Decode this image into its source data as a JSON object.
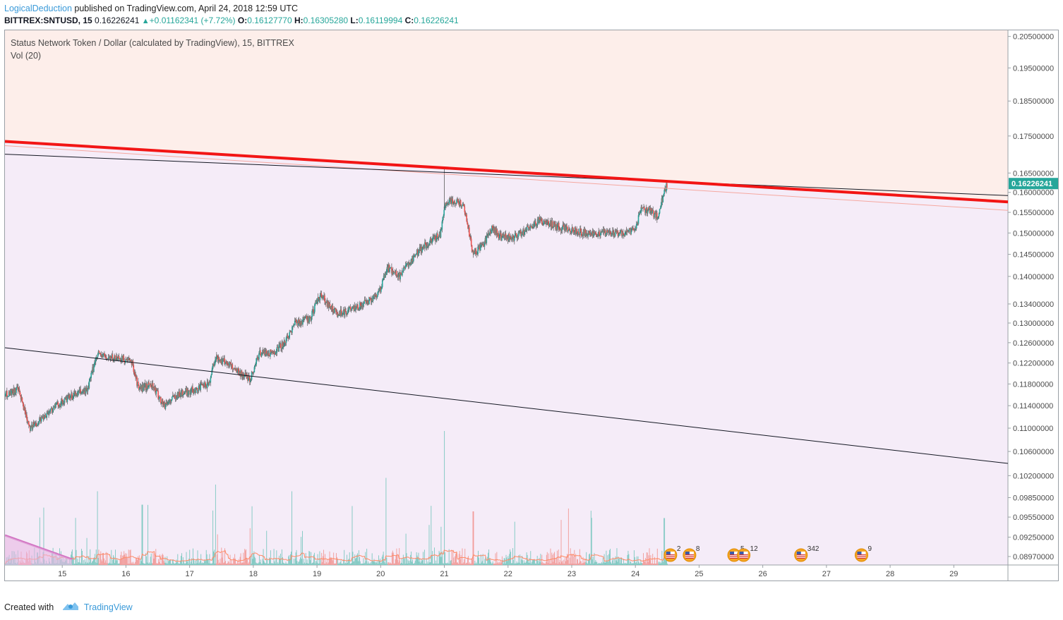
{
  "header": {
    "author": "LogicalDeduction",
    "published": "published on TradingView.com, April 24, 2018 12:59 UTC"
  },
  "quote": {
    "symbol": "BITTREX:SNTUSD, 15",
    "last": "0.16226241",
    "change": "+0.01162341 (+7.72%)",
    "open_label": "O:",
    "open": "0.16127770",
    "high_label": "H:",
    "high": "0.16305280",
    "low_label": "L:",
    "low": "0.16119994",
    "close_label": "C:",
    "close": "0.16226241"
  },
  "legend": {
    "title": "Status Network Token / Dollar (calculated by TradingView), 15, BITTREX",
    "volume": "Vol (20)"
  },
  "footer": {
    "created_with": "Created with",
    "brand": "TradingView"
  },
  "chart_data": {
    "type": "candlestick",
    "title": "Status Network Token / Dollar (calculated by TradingView), 15, BITTREX",
    "y_scale": "log",
    "ylim": [
      0.0885,
      0.207
    ],
    "price_ticks": [
      0.205,
      0.195,
      0.185,
      0.175,
      0.165,
      0.16,
      0.155,
      0.15,
      0.145,
      0.14,
      0.134,
      0.13,
      0.126,
      0.122,
      0.118,
      0.114,
      0.11,
      0.106,
      0.102,
      0.0985,
      0.0955,
      0.0925,
      0.0897
    ],
    "price_tick_labels": [
      "0.20500000",
      "0.19500000",
      "0.18500000",
      "0.17500000",
      "0.16500000",
      "0.16000000",
      "0.15500000",
      "0.15000000",
      "0.14500000",
      "0.14000000",
      "0.13400000",
      "0.13000000",
      "0.12600000",
      "0.12200000",
      "0.11800000",
      "0.11400000",
      "0.11000000",
      "0.10600000",
      "0.10200000",
      "0.09850000",
      "0.09550000",
      "0.09250000",
      "0.08970000"
    ],
    "last_price_label": "0.16226241",
    "x_axis_dates": [
      "15",
      "16",
      "17",
      "18",
      "19",
      "20",
      "21",
      "22",
      "23",
      "24",
      "25",
      "26",
      "27",
      "28",
      "29"
    ],
    "x_range_days": [
      14.1,
      29.85
    ],
    "close_path": [
      {
        "x": 14.1,
        "y": 0.116
      },
      {
        "x": 14.3,
        "y": 0.117
      },
      {
        "x": 14.5,
        "y": 0.11
      },
      {
        "x": 14.7,
        "y": 0.112
      },
      {
        "x": 14.9,
        "y": 0.114
      },
      {
        "x": 15.2,
        "y": 0.116
      },
      {
        "x": 15.4,
        "y": 0.117
      },
      {
        "x": 15.55,
        "y": 0.124
      },
      {
        "x": 15.7,
        "y": 0.123
      },
      {
        "x": 15.9,
        "y": 0.123
      },
      {
        "x": 16.1,
        "y": 0.122
      },
      {
        "x": 16.2,
        "y": 0.117
      },
      {
        "x": 16.4,
        "y": 0.118
      },
      {
        "x": 16.6,
        "y": 0.114
      },
      {
        "x": 16.8,
        "y": 0.116
      },
      {
        "x": 17.1,
        "y": 0.117
      },
      {
        "x": 17.3,
        "y": 0.118
      },
      {
        "x": 17.4,
        "y": 0.123
      },
      {
        "x": 17.6,
        "y": 0.122
      },
      {
        "x": 17.8,
        "y": 0.12
      },
      {
        "x": 17.95,
        "y": 0.119
      },
      {
        "x": 18.1,
        "y": 0.124
      },
      {
        "x": 18.3,
        "y": 0.124
      },
      {
        "x": 18.5,
        "y": 0.126
      },
      {
        "x": 18.65,
        "y": 0.13
      },
      {
        "x": 18.9,
        "y": 0.131
      },
      {
        "x": 19.05,
        "y": 0.136
      },
      {
        "x": 19.3,
        "y": 0.132
      },
      {
        "x": 19.6,
        "y": 0.133
      },
      {
        "x": 19.85,
        "y": 0.135
      },
      {
        "x": 20.0,
        "y": 0.137
      },
      {
        "x": 20.1,
        "y": 0.142
      },
      {
        "x": 20.3,
        "y": 0.14
      },
      {
        "x": 20.45,
        "y": 0.143
      },
      {
        "x": 20.6,
        "y": 0.146
      },
      {
        "x": 20.8,
        "y": 0.148
      },
      {
        "x": 20.95,
        "y": 0.15
      },
      {
        "x": 21.0,
        "y": 0.157
      },
      {
        "x": 21.1,
        "y": 0.158
      },
      {
        "x": 21.3,
        "y": 0.157
      },
      {
        "x": 21.45,
        "y": 0.145
      },
      {
        "x": 21.6,
        "y": 0.147
      },
      {
        "x": 21.75,
        "y": 0.151
      },
      {
        "x": 21.9,
        "y": 0.149
      },
      {
        "x": 22.1,
        "y": 0.149
      },
      {
        "x": 22.3,
        "y": 0.151
      },
      {
        "x": 22.5,
        "y": 0.153
      },
      {
        "x": 22.7,
        "y": 0.152
      },
      {
        "x": 22.9,
        "y": 0.151
      },
      {
        "x": 23.2,
        "y": 0.15
      },
      {
        "x": 23.5,
        "y": 0.15
      },
      {
        "x": 23.8,
        "y": 0.15
      },
      {
        "x": 24.0,
        "y": 0.151
      },
      {
        "x": 24.1,
        "y": 0.156
      },
      {
        "x": 24.25,
        "y": 0.155
      },
      {
        "x": 24.35,
        "y": 0.154
      },
      {
        "x": 24.45,
        "y": 0.16
      },
      {
        "x": 24.5,
        "y": 0.1623
      }
    ],
    "trend_lines": [
      {
        "name": "red resistance",
        "color": "#f21515",
        "from": {
          "x": 14.1,
          "y": 0.1735
        },
        "to": {
          "x": 29.85,
          "y": 0.1576
        }
      },
      {
        "name": "upper black line",
        "color": "#131722",
        "from": {
          "x": 14.1,
          "y": 0.17
        },
        "to": {
          "x": 29.85,
          "y": 0.1592
        }
      },
      {
        "name": "lower black line",
        "color": "#131722",
        "from": {
          "x": 14.1,
          "y": 0.125
        },
        "to": {
          "x": 29.85,
          "y": 0.104
        }
      }
    ],
    "volume_spikes": [
      {
        "x": 15.55,
        "v": 0.55
      },
      {
        "x": 16.25,
        "v": 0.45
      },
      {
        "x": 17.4,
        "v": 0.6
      },
      {
        "x": 18.6,
        "v": 0.55
      },
      {
        "x": 20.08,
        "v": 0.65
      },
      {
        "x": 21.0,
        "v": 1.0
      },
      {
        "x": 21.45,
        "v": 0.4
      },
      {
        "x": 24.45,
        "v": 0.35
      }
    ],
    "event_markers": [
      {
        "x": 24.55,
        "label": "2"
      },
      {
        "x": 24.85,
        "label": "8"
      },
      {
        "x": 25.55,
        "label": "5"
      },
      {
        "x": 25.7,
        "label": "12"
      },
      {
        "x": 26.6,
        "label": "342"
      },
      {
        "x": 27.55,
        "label": "9"
      }
    ],
    "colors": {
      "up_candle": "#26a69a",
      "down_candle": "#ef5350",
      "resistance_zone": "#fdeeea",
      "channel_zone": "#f5ecf8",
      "red_line": "#f21515",
      "last_price_tag": "#26a69a"
    }
  }
}
